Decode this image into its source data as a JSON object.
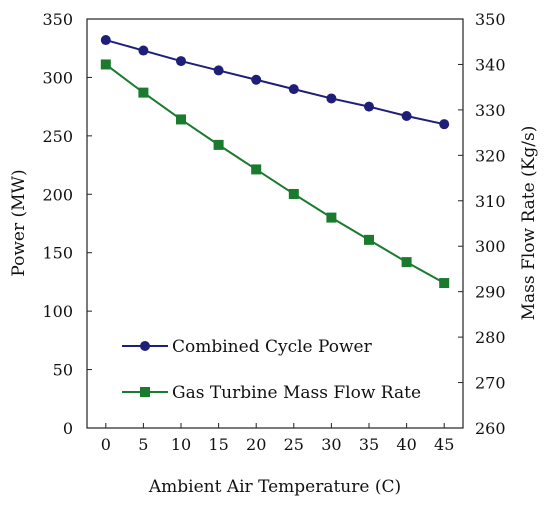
{
  "chart_data": {
    "type": "line",
    "x": [
      0,
      5,
      10,
      15,
      20,
      25,
      30,
      35,
      40,
      45
    ],
    "xlabel": "Ambient Air Temperature (C)",
    "ylabel_left": "Power (MW)",
    "ylabel_right": "Mass Flow Rate (Kg/s)",
    "xlim": [
      -2.5,
      47.5
    ],
    "ylim_left": [
      0,
      350
    ],
    "ylim_right": [
      260,
      350
    ],
    "xticks": [
      "0",
      "5",
      "10",
      "15",
      "20",
      "25",
      "30",
      "35",
      "40",
      "45"
    ],
    "yticks_left": [
      "0",
      "50",
      "100",
      "150",
      "200",
      "250",
      "300",
      "350"
    ],
    "yticks_right": [
      "260",
      "270",
      "280",
      "290",
      "300",
      "310",
      "320",
      "330",
      "340",
      "350"
    ],
    "grid": false,
    "legend_position": "bottom-left",
    "series": [
      {
        "name": "Combined Cycle Power",
        "axis": "left",
        "marker": "circle",
        "color": "#1f1f7a",
        "values": [
          332,
          323,
          314,
          306,
          298,
          290,
          282,
          275,
          267,
          260
        ]
      },
      {
        "name": "Gas Turbine Mass Flow Rate",
        "axis": "right",
        "marker": "square",
        "color": "#1a7a2e",
        "values": [
          340,
          333.8,
          327.9,
          322.3,
          316.9,
          311.5,
          306.3,
          301.4,
          296.5,
          291.9
        ]
      }
    ]
  }
}
